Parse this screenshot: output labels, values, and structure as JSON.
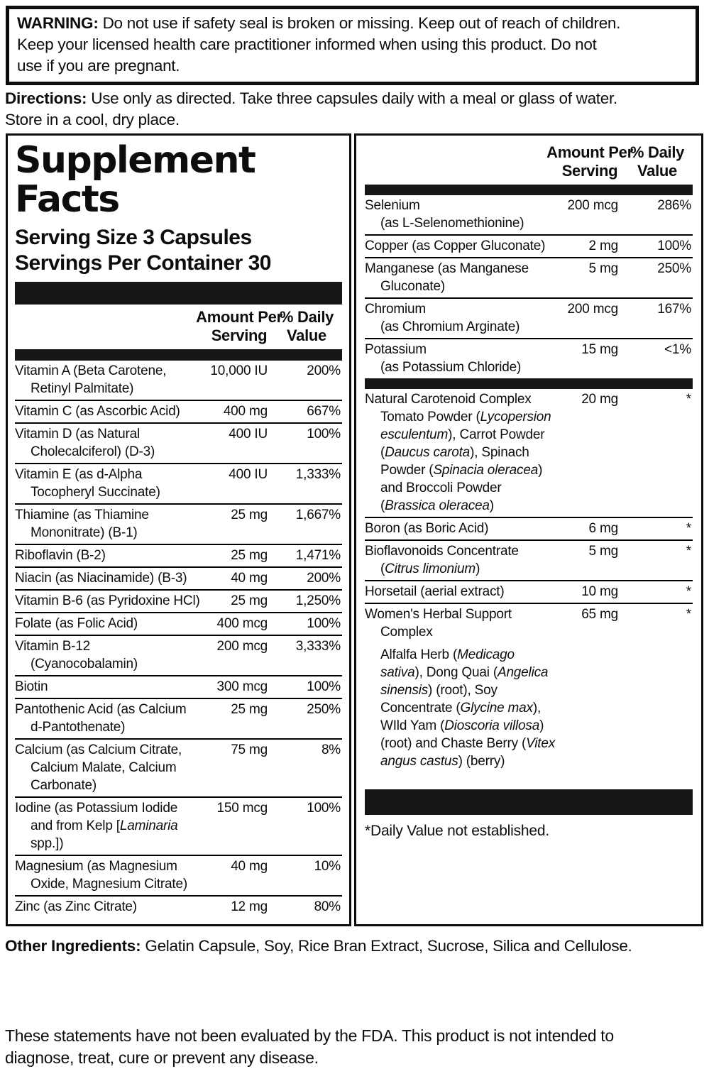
{
  "warning": {
    "label": "WARNING:",
    "line1_rest": " Do not use if safety seal is broken or missing. Keep out of reach of children.",
    "line2": "Keep your licensed health care practitioner informed when using this product. Do not",
    "line3": "use if you are pregnant."
  },
  "directions": {
    "label": "Directions:",
    "line1_rest": " Use only as directed. Take three capsules daily with a meal or glass of water.",
    "line2": "Store in a cool, dry place."
  },
  "panel": {
    "title_line1": "Supplement",
    "title_line2": "Facts",
    "serving_size": "Serving Size 3 Capsules",
    "servings_per_container": "Servings Per Container 30",
    "col_headers": {
      "amount_line1": "Amount Per",
      "amount_line2": "Serving",
      "dv_line1": "% Daily",
      "dv_line2": "Value"
    },
    "left_rows": [
      {
        "name_lines": [
          "Vitamin A (Beta Carotene,",
          "Retinyl Palmitate)"
        ],
        "amount": "10,000 IU",
        "dv": "200%"
      },
      {
        "name_lines": [
          "Vitamin C (as Ascorbic Acid)"
        ],
        "amount": "400 mg",
        "dv": "667%"
      },
      {
        "name_lines": [
          "Vitamin D (as Natural",
          "Cholecalciferol) (D-3)"
        ],
        "amount": "400 IU",
        "dv": "100%"
      },
      {
        "name_lines": [
          "Vitamin E (as d-Alpha",
          "Tocopheryl Succinate)"
        ],
        "amount": "400 IU",
        "dv": "1,333%"
      },
      {
        "name_lines": [
          "Thiamine (as Thiamine",
          "Mononitrate) (B-1)"
        ],
        "amount": "25 mg",
        "dv": "1,667%"
      },
      {
        "name_lines": [
          "Riboflavin (B-2)"
        ],
        "amount": "25 mg",
        "dv": "1,471%"
      },
      {
        "name_lines": [
          "Niacin (as Niacinamide) (B-3)"
        ],
        "amount": "40 mg",
        "dv": "200%"
      },
      {
        "name_lines": [
          "Vitamin B-6 (as Pyridoxine HCl)"
        ],
        "amount": "25 mg",
        "dv": "1,250%"
      },
      {
        "name_lines": [
          "Folate (as Folic Acid)"
        ],
        "amount": "400 mcg",
        "dv": "100%"
      },
      {
        "name_lines": [
          "Vitamin B-12",
          "(Cyanocobalamin)"
        ],
        "amount": "200 mcg",
        "dv": "3,333%"
      },
      {
        "name_lines": [
          "Biotin"
        ],
        "amount": "300 mcg",
        "dv": "100%"
      },
      {
        "name_lines": [
          "Pantothenic Acid (as Calcium",
          "d-Pantothenate)"
        ],
        "amount": "25 mg",
        "dv": "250%"
      },
      {
        "name_lines": [
          "Calcium (as Calcium Citrate,",
          "Calcium Malate, Calcium",
          "Carbonate)"
        ],
        "amount": "75 mg",
        "dv": "8%"
      },
      {
        "name_lines": [
          "Iodine (as Potassium Iodide",
          "and from Kelp [{Laminaria}",
          "spp.])"
        ],
        "amount": "150 mcg",
        "dv": "100%"
      },
      {
        "name_lines": [
          "Magnesium (as Magnesium",
          "Oxide, Magnesium Citrate)"
        ],
        "amount": "40 mg",
        "dv": "10%"
      },
      {
        "name_lines": [
          "Zinc (as Zinc Citrate)"
        ],
        "amount": "12 mg",
        "dv": "80%"
      }
    ],
    "right_rows_1": [
      {
        "name_lines": [
          "Selenium",
          "(as L-Selenomethionine)"
        ],
        "amount": "200 mcg",
        "dv": "286%"
      },
      {
        "name_lines": [
          "Copper (as Copper Gluconate)"
        ],
        "amount": "2 mg",
        "dv": "100%"
      },
      {
        "name_lines": [
          "Manganese (as Manganese",
          "Gluconate)"
        ],
        "amount": "5 mg",
        "dv": "250%"
      },
      {
        "name_lines": [
          "Chromium",
          "(as Chromium Arginate)"
        ],
        "amount": "200 mcg",
        "dv": "167%"
      },
      {
        "name_lines": [
          "Potassium",
          "(as Potassium Chloride)"
        ],
        "amount": "15 mg",
        "dv": "<1%"
      }
    ],
    "right_rows_2": [
      {
        "name_lines": [
          "Natural Carotenoid Complex"
        ],
        "sub_lines": [
          "Tomato Powder ({Lycopersion}",
          "{esculentum}), Carrot Powder",
          "({Daucus carota}), Spinach",
          "Powder ({Spinacia oleracea})",
          "and Broccoli Powder",
          "({Brassica oleracea})"
        ],
        "amount": "20 mg",
        "dv": "*"
      },
      {
        "name_lines": [
          "Boron (as Boric Acid)"
        ],
        "amount": "6 mg",
        "dv": "*"
      },
      {
        "name_lines": [
          "Bioflavonoids Concentrate",
          "({Citrus limonium})"
        ],
        "amount": "5 mg",
        "dv": "*"
      },
      {
        "name_lines": [
          "Horsetail (aerial extract)"
        ],
        "amount": "10 mg",
        "dv": "*"
      },
      {
        "name_lines": [
          "Women's Herbal Support",
          "Complex"
        ],
        "gap_before_sub": true,
        "sub_lines": [
          "Alfalfa Herb ({Medicago}",
          "{sativa}), Dong Quai ({Angelica}",
          "{sinensis}) (root), Soy",
          "Concentrate ({Glycine max}),",
          "WIld Yam ({Dioscoria villosa})",
          "(root) and Chaste Berry ({Vitex}",
          "{angus castus}) (berry)"
        ],
        "amount": "65 mg",
        "dv": "*"
      }
    ],
    "footnote": "*Daily Value not established."
  },
  "other_ingredients": {
    "label": "Other Ingredients:",
    "rest": " Gelatin Capsule, Soy, Rice Bran Extract, Sucrose, Silica and Cellulose."
  },
  "fda": {
    "line1": "These statements have not been evaluated by the FDA. This product is not intended to",
    "line2": "diagnose, treat, cure or prevent any disease."
  },
  "colors": {
    "ink": "#0d0d0d",
    "bar": "#161616",
    "background": "#ffffff"
  }
}
